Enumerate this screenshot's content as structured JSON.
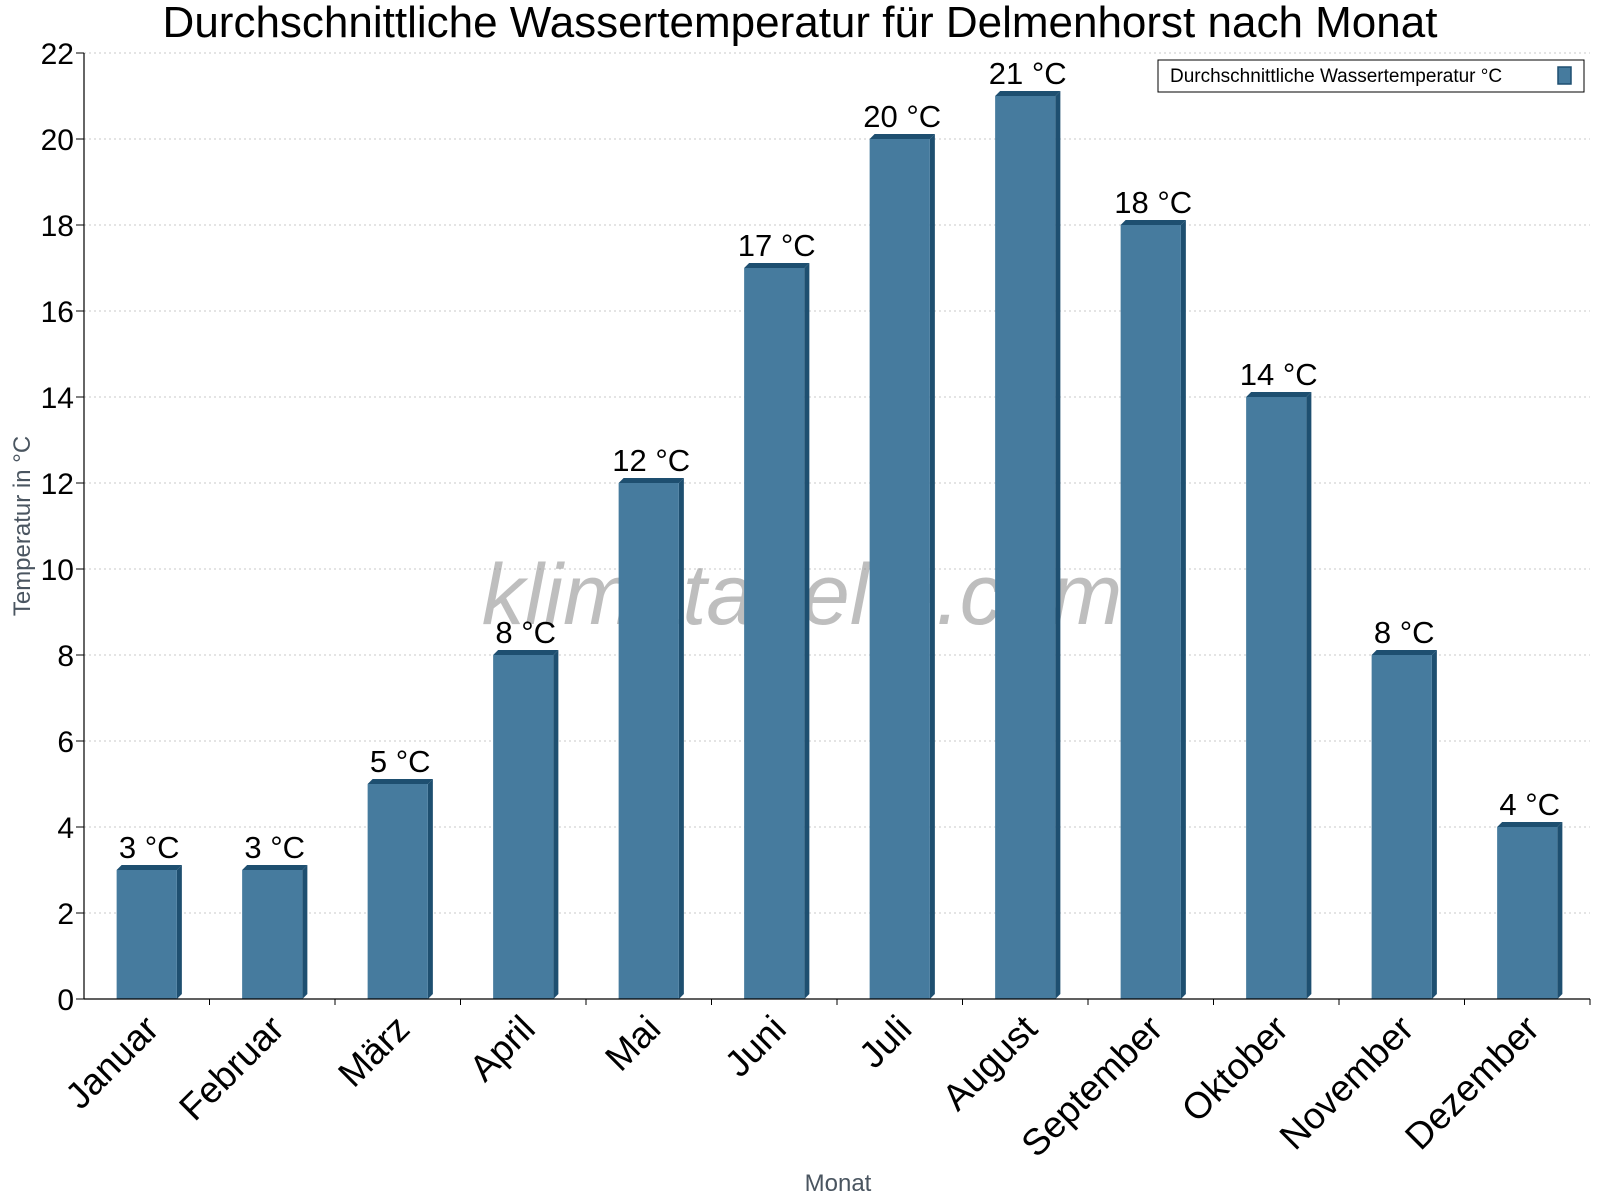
{
  "chart_data": {
    "type": "bar",
    "title": "Durchschnittliche Wassertemperatur für Delmenhorst nach Monat",
    "xlabel": "Monat",
    "ylabel": "Temperatur in °C",
    "categories": [
      "Januar",
      "Februar",
      "März",
      "April",
      "Mai",
      "Juni",
      "Juli",
      "August",
      "September",
      "Oktober",
      "November",
      "Dezember"
    ],
    "series": [
      {
        "name": "Durchschnittliche Wassertemperatur °C",
        "values": [
          3,
          3,
          5,
          8,
          12,
          17,
          20,
          21,
          18,
          14,
          8,
          4
        ],
        "labels": [
          "3 °C",
          "3 °C",
          "5 °C",
          "8 °C",
          "12 °C",
          "17 °C",
          "20 °C",
          "21 °C",
          "18 °C",
          "14 °C",
          "8 °C",
          "4 °C"
        ]
      }
    ],
    "ylim": [
      0,
      22
    ],
    "yticks": [
      0,
      2,
      4,
      6,
      8,
      10,
      12,
      14,
      16,
      18,
      20,
      22
    ],
    "grid": true,
    "legend_position": "top-right",
    "colors": {
      "bar": "#467b9e",
      "bar_side": "#1e4f70",
      "grid": "#c8c8c8"
    }
  },
  "watermark": "klimatabelle.com"
}
